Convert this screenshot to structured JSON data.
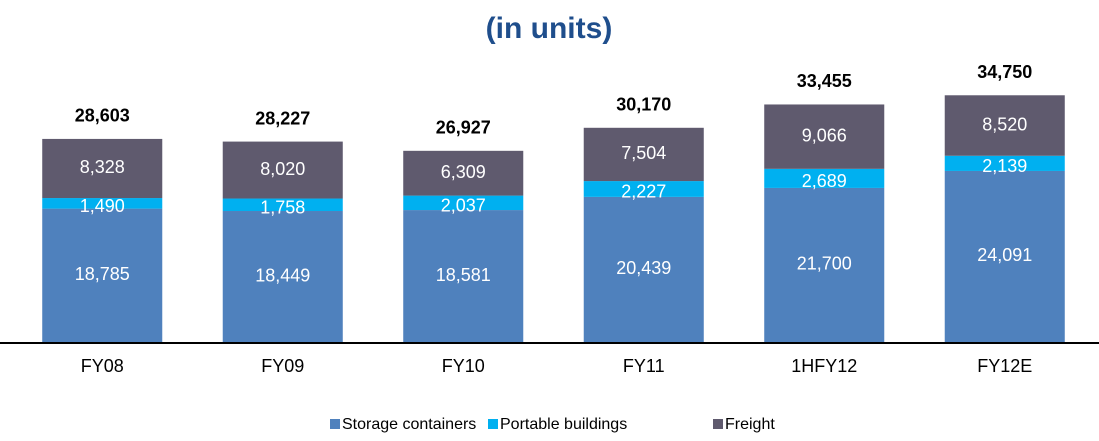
{
  "chart_data": {
    "type": "stacked_bar",
    "title": "(in units)",
    "categories": [
      "FY08",
      "FY09",
      "FY10",
      "FY11",
      "1HFY12",
      "FY12E"
    ],
    "series": [
      {
        "name": "Storage containers",
        "color": "#4f81bd",
        "values": [
          18785,
          18449,
          18581,
          20439,
          21700,
          24091
        ],
        "value_labels": [
          "18,785",
          "18,449",
          "18,581",
          "20,439",
          "21,700",
          "24,091"
        ]
      },
      {
        "name": "Portable buildings",
        "color": "#00b0f0",
        "values": [
          1490,
          1758,
          2037,
          2227,
          2689,
          2139
        ],
        "value_labels": [
          "1,490",
          "1,758",
          "2,037",
          "2,227",
          "2,689",
          "2,139"
        ]
      },
      {
        "name": "Freight",
        "color": "#5f5a6e",
        "values": [
          8328,
          8020,
          6309,
          7504,
          9066,
          8520
        ],
        "value_labels": [
          "8,328",
          "8,020",
          "6,309",
          "7,504",
          "9,066",
          "8,520"
        ]
      }
    ],
    "totals": {
      "values": [
        28603,
        28227,
        26927,
        30170,
        33455,
        34750
      ],
      "value_labels": [
        "28,603",
        "28,227",
        "26,927",
        "30,170",
        "33,455",
        "34,750"
      ]
    },
    "ylim": [
      0,
      40000
    ]
  }
}
